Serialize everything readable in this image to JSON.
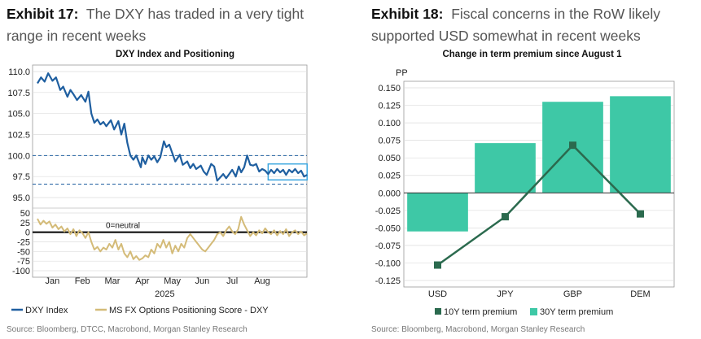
{
  "exhibits": [
    {
      "number": "Exhibit 17:",
      "title": "The DXY has traded in a very tight range in recent weeks",
      "source": "Source: Bloomberg, DTCC, Macrobond, Morgan Stanley Research"
    },
    {
      "number": "Exhibit 18:",
      "title": "Fiscal concerns in the RoW likely supported USD somewhat in recent weeks",
      "source": "Source: Bloomberg, Macrobond, Morgan Stanley Research"
    }
  ],
  "colors": {
    "dxy": "#1f5fa0",
    "positioning": "#d4bb78",
    "term30": "#3ec8a6",
    "term10": "#2b6a4e",
    "highlight": "#3aa6e0"
  },
  "chart_data": [
    {
      "type": "line",
      "title": "DXY Index and Positioning",
      "year_label": "2025",
      "x_tick_labels": [
        "Jan",
        "Feb",
        "Mar",
        "Apr",
        "May",
        "Jun",
        "Jul",
        "Aug"
      ],
      "upper_panel": {
        "ylim": [
          95.0,
          110.0
        ],
        "y_ticks": [
          "110.0",
          "107.5",
          "105.0",
          "102.5",
          "100.0",
          "97.5",
          "95.0"
        ],
        "reference_lines": [
          100.0,
          96.6
        ],
        "highlight_box": {
          "x_from": 7.7,
          "x_to": 9.0,
          "y_from": 97.1,
          "y_to": 99.0
        },
        "series": {
          "name": "DXY Index",
          "x": [
            0,
            0.12,
            0.24,
            0.36,
            0.5,
            0.62,
            0.76,
            0.86,
            1.0,
            1.1,
            1.2,
            1.32,
            1.46,
            1.6,
            1.7,
            1.8,
            1.9,
            2.0,
            2.1,
            2.2,
            2.3,
            2.45,
            2.56,
            2.7,
            2.8,
            2.9,
            3.0,
            3.1,
            3.2,
            3.3,
            3.45,
            3.5,
            3.6,
            3.7,
            3.8,
            3.9,
            4.0,
            4.1,
            4.22,
            4.3,
            4.4,
            4.5,
            4.6,
            4.75,
            4.85,
            5.0,
            5.1,
            5.2,
            5.3,
            5.45,
            5.55,
            5.65,
            5.8,
            5.9,
            6.0,
            6.1,
            6.2,
            6.3,
            6.4,
            6.5,
            6.62,
            6.72,
            6.8,
            6.9,
            7.0,
            7.1,
            7.2,
            7.3,
            7.4,
            7.5,
            7.6,
            7.7,
            7.8,
            7.9,
            8.0,
            8.1,
            8.2,
            8.3,
            8.4,
            8.5,
            8.6,
            8.7,
            8.8,
            8.9,
            9.0
          ],
          "y": [
            108.6,
            109.3,
            108.8,
            109.8,
            108.9,
            109.3,
            107.8,
            108.2,
            107.0,
            107.8,
            107.3,
            106.6,
            107.2,
            106.4,
            107.6,
            105.0,
            103.9,
            104.3,
            103.7,
            104.0,
            103.5,
            104.2,
            103.1,
            104.1,
            102.5,
            103.8,
            101.5,
            100.0,
            99.5,
            100.0,
            98.6,
            99.8,
            99.0,
            100.0,
            99.5,
            99.9,
            99.2,
            99.8,
            101.7,
            101.0,
            101.3,
            100.3,
            99.3,
            100.1,
            98.9,
            99.3,
            98.5,
            99.0,
            98.4,
            98.8,
            98.1,
            97.7,
            99.0,
            98.7,
            97.0,
            97.4,
            97.8,
            97.3,
            97.8,
            98.3,
            97.5,
            98.7,
            98.0,
            98.6,
            100.0,
            98.9,
            98.8,
            99.0,
            98.1,
            98.4,
            98.2,
            97.8,
            98.3,
            97.9,
            98.4,
            98.0,
            98.3,
            97.7,
            98.3,
            98.0,
            98.4,
            97.9,
            98.2,
            97.5,
            97.7
          ]
        }
      },
      "lower_panel": {
        "ylim": [
          -100,
          50
        ],
        "y_ticks": [
          "50",
          "25",
          "0",
          "-25",
          "-50",
          "-75",
          "-100"
        ],
        "zero_line_label": "0=neutral",
        "series": {
          "name": "MS FX Options Positioning Score - DXY",
          "x": [
            0,
            0.1,
            0.2,
            0.3,
            0.4,
            0.5,
            0.6,
            0.7,
            0.8,
            0.9,
            1.0,
            1.1,
            1.2,
            1.3,
            1.4,
            1.5,
            1.6,
            1.7,
            1.8,
            1.9,
            2.0,
            2.1,
            2.2,
            2.3,
            2.4,
            2.5,
            2.6,
            2.7,
            2.8,
            2.9,
            3.0,
            3.1,
            3.2,
            3.3,
            3.4,
            3.5,
            3.6,
            3.7,
            3.8,
            3.9,
            4.0,
            4.1,
            4.2,
            4.3,
            4.4,
            4.5,
            4.6,
            4.7,
            4.8,
            4.9,
            5.0,
            5.1,
            5.2,
            5.3,
            5.4,
            5.5,
            5.6,
            5.7,
            5.8,
            5.9,
            6.0,
            6.1,
            6.2,
            6.3,
            6.4,
            6.5,
            6.6,
            6.7,
            6.8,
            6.9,
            7.0,
            7.1,
            7.2,
            7.3,
            7.4,
            7.5,
            7.6,
            7.7,
            7.8,
            7.9,
            8.0,
            8.1,
            8.2,
            8.3,
            8.4,
            8.5,
            8.6,
            8.7,
            8.8,
            8.9,
            9.0
          ],
          "y": [
            35,
            20,
            30,
            22,
            28,
            12,
            20,
            8,
            15,
            2,
            10,
            -5,
            8,
            -10,
            5,
            -2,
            -15,
            0,
            -25,
            -45,
            -38,
            -50,
            -40,
            -45,
            -30,
            -40,
            -20,
            -45,
            -30,
            -55,
            -65,
            -50,
            -70,
            -62,
            -72,
            -68,
            -60,
            -65,
            -45,
            -55,
            -30,
            -40,
            -20,
            -40,
            -25,
            -55,
            -35,
            -50,
            -30,
            -40,
            -15,
            -5,
            -15,
            -25,
            -35,
            -45,
            -50,
            -40,
            -30,
            -20,
            -5,
            0,
            -10,
            5,
            15,
            2,
            -5,
            8,
            40,
            20,
            5,
            -10,
            0,
            -8,
            5,
            -3,
            10,
            0,
            -5,
            5,
            -8,
            3,
            -5,
            8,
            -10,
            0,
            5,
            -5,
            2,
            -8,
            -3
          ]
        }
      },
      "legend": [
        "DXY Index",
        "MS FX Options Positioning Score - DXY"
      ]
    },
    {
      "type": "bar",
      "title": "Change in term premium since August 1",
      "ylabel": "PP",
      "ylim": [
        -0.125,
        0.15
      ],
      "y_ticks": [
        "0.150",
        "0.125",
        "0.100",
        "0.075",
        "0.050",
        "0.025",
        "0.000",
        "-0.025",
        "-0.050",
        "-0.075",
        "-0.100",
        "-0.125"
      ],
      "categories": [
        "USD",
        "JPY",
        "GBP",
        "DEM"
      ],
      "series": [
        {
          "name": "10Y term premium",
          "kind": "line",
          "values": [
            -0.103,
            -0.034,
            0.068,
            -0.03
          ]
        },
        {
          "name": "30Y term premium",
          "kind": "bar",
          "values": [
            -0.055,
            0.071,
            0.13,
            0.138
          ]
        }
      ],
      "legend": [
        "10Y term premium",
        "30Y term premium"
      ]
    }
  ]
}
